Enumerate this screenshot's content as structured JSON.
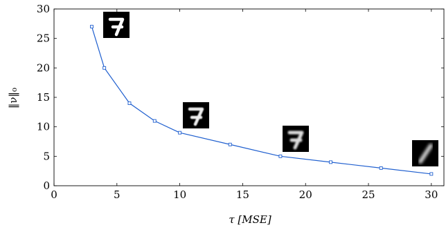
{
  "chart_data": {
    "type": "line",
    "title": "",
    "xlabel": "τ [MSE]",
    "ylabel": "‖ν‖₀",
    "xlim": [
      0,
      31
    ],
    "ylim": [
      0,
      30
    ],
    "xticks": [
      0,
      5,
      10,
      15,
      20,
      25,
      30
    ],
    "yticks": [
      0,
      5,
      10,
      15,
      20,
      25,
      30
    ],
    "grid": false,
    "series": [
      {
        "color": "#1f5fcf",
        "marker": "square",
        "x": [
          3,
          4,
          6,
          8,
          10,
          14,
          18,
          22,
          26,
          30
        ],
        "y": [
          27,
          20,
          14,
          11,
          9,
          7,
          5,
          4,
          3,
          2
        ]
      }
    ],
    "annotations": [
      {
        "kind": "digit-thumbnail",
        "depicts": "handwritten digit 7, sharp",
        "near_x": 3,
        "near_y": 27
      },
      {
        "kind": "digit-thumbnail",
        "depicts": "handwritten digit 7, slightly blurred",
        "near_x": 10,
        "near_y": 9
      },
      {
        "kind": "digit-thumbnail",
        "depicts": "handwritten digit 7, blurred",
        "near_x": 18,
        "near_y": 5
      },
      {
        "kind": "digit-thumbnail",
        "depicts": "handwritten digit resembling 1, heavily blurred",
        "near_x": 30,
        "near_y": 2
      }
    ]
  }
}
